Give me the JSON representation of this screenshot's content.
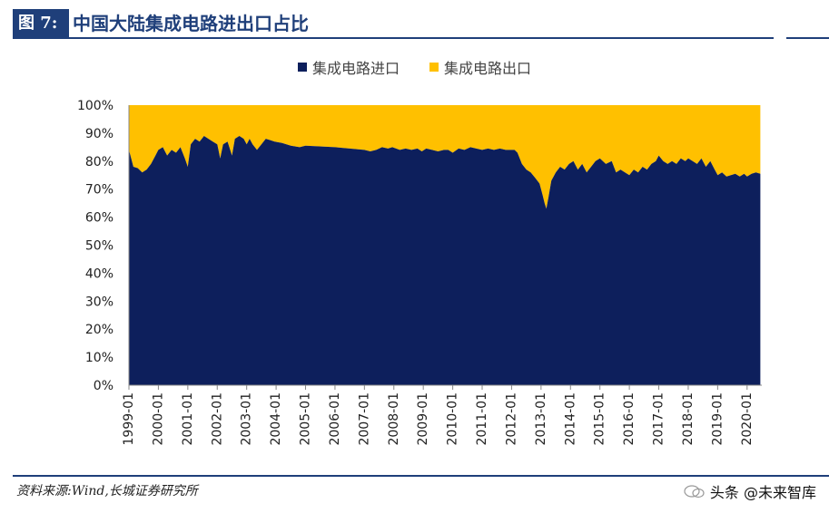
{
  "header": {
    "fig_label": "图 7:",
    "title": "中国大陆集成电路进出口占比"
  },
  "footer": {
    "source": "资料来源:Wind,长城证券研究所",
    "watermark": "头条 @未来智库"
  },
  "colors": {
    "import": "#0d1f5c",
    "export": "#ffc000",
    "brand": "#1f3f7a"
  },
  "chart_data": {
    "type": "area",
    "stacked": true,
    "title": "",
    "xlabel": "",
    "ylabel": "",
    "ylim": [
      0,
      100
    ],
    "y_ticks": [
      "0%",
      "10%",
      "20%",
      "30%",
      "40%",
      "50%",
      "60%",
      "70%",
      "80%",
      "90%",
      "100%"
    ],
    "x_ticks": [
      "1999-01",
      "2000-01",
      "2001-01",
      "2002-01",
      "2003-01",
      "2004-01",
      "2005-01",
      "2006-01",
      "2007-01",
      "2008-01",
      "2009-01",
      "2010-01",
      "2011-01",
      "2012-01",
      "2013-01",
      "2014-01",
      "2015-01",
      "2016-01",
      "2017-01",
      "2018-01",
      "2019-01",
      "2020-01"
    ],
    "legend": "top-center",
    "grid": false,
    "series": [
      {
        "name": "集成电路进口",
        "points": [
          [
            1999.0,
            84
          ],
          [
            1999.15,
            78
          ],
          [
            1999.3,
            77.5
          ],
          [
            1999.45,
            76
          ],
          [
            1999.6,
            77
          ],
          [
            1999.75,
            79
          ],
          [
            1999.9,
            82
          ],
          [
            2000.0,
            84
          ],
          [
            2000.15,
            85
          ],
          [
            2000.3,
            82
          ],
          [
            2000.45,
            84
          ],
          [
            2000.6,
            83
          ],
          [
            2000.75,
            85
          ],
          [
            2000.9,
            81
          ],
          [
            2001.0,
            78
          ],
          [
            2001.1,
            86
          ],
          [
            2001.25,
            88
          ],
          [
            2001.4,
            87
          ],
          [
            2001.55,
            89
          ],
          [
            2001.7,
            88
          ],
          [
            2001.85,
            87
          ],
          [
            2002.0,
            86
          ],
          [
            2002.1,
            81
          ],
          [
            2002.2,
            86
          ],
          [
            2002.35,
            87
          ],
          [
            2002.5,
            82
          ],
          [
            2002.6,
            88
          ],
          [
            2002.75,
            89
          ],
          [
            2002.9,
            88
          ],
          [
            2003.0,
            86
          ],
          [
            2003.1,
            88
          ],
          [
            2003.2,
            86
          ],
          [
            2003.35,
            84
          ],
          [
            2003.5,
            86
          ],
          [
            2003.65,
            88
          ],
          [
            2003.8,
            87.5
          ],
          [
            2003.95,
            87
          ],
          [
            2004.2,
            86.5
          ],
          [
            2004.5,
            85.5
          ],
          [
            2004.8,
            85
          ],
          [
            2005.0,
            85.5
          ],
          [
            2006.0,
            85
          ],
          [
            2007.0,
            84
          ],
          [
            2007.2,
            83.5
          ],
          [
            2007.4,
            84
          ],
          [
            2007.6,
            85
          ],
          [
            2007.8,
            84.5
          ],
          [
            2007.95,
            85
          ],
          [
            2008.2,
            84
          ],
          [
            2008.4,
            84.5
          ],
          [
            2008.6,
            84
          ],
          [
            2008.8,
            84.5
          ],
          [
            2008.95,
            83.5
          ],
          [
            2009.1,
            84.5
          ],
          [
            2009.3,
            84
          ],
          [
            2009.5,
            83.5
          ],
          [
            2009.7,
            84
          ],
          [
            2009.85,
            84
          ],
          [
            2010.0,
            83
          ],
          [
            2010.2,
            84.5
          ],
          [
            2010.4,
            84
          ],
          [
            2010.6,
            85
          ],
          [
            2010.8,
            84.5
          ],
          [
            2011.0,
            84
          ],
          [
            2011.2,
            84.5
          ],
          [
            2011.4,
            84
          ],
          [
            2011.6,
            84.5
          ],
          [
            2011.8,
            84
          ],
          [
            2012.0,
            84
          ],
          [
            2012.1,
            84
          ],
          [
            2012.2,
            83
          ],
          [
            2012.35,
            79
          ],
          [
            2012.5,
            77
          ],
          [
            2012.65,
            76
          ],
          [
            2012.8,
            74
          ],
          [
            2012.95,
            72
          ],
          [
            2013.05,
            68
          ],
          [
            2013.12,
            65
          ],
          [
            2013.18,
            63
          ],
          [
            2013.25,
            67
          ],
          [
            2013.35,
            73
          ],
          [
            2013.5,
            76
          ],
          [
            2013.65,
            78
          ],
          [
            2013.8,
            77
          ],
          [
            2013.95,
            79
          ],
          [
            2014.1,
            80
          ],
          [
            2014.25,
            77
          ],
          [
            2014.4,
            79
          ],
          [
            2014.55,
            76
          ],
          [
            2014.7,
            78
          ],
          [
            2014.85,
            80
          ],
          [
            2015.0,
            81
          ],
          [
            2015.2,
            79
          ],
          [
            2015.4,
            80
          ],
          [
            2015.55,
            76
          ],
          [
            2015.7,
            77
          ],
          [
            2015.85,
            76
          ],
          [
            2016.0,
            75
          ],
          [
            2016.15,
            77
          ],
          [
            2016.3,
            76
          ],
          [
            2016.45,
            78
          ],
          [
            2016.6,
            77
          ],
          [
            2016.75,
            79
          ],
          [
            2016.9,
            80
          ],
          [
            2017.0,
            82
          ],
          [
            2017.15,
            80
          ],
          [
            2017.3,
            79
          ],
          [
            2017.45,
            80
          ],
          [
            2017.6,
            79
          ],
          [
            2017.75,
            81
          ],
          [
            2017.9,
            80
          ],
          [
            2018.0,
            81
          ],
          [
            2018.15,
            80
          ],
          [
            2018.3,
            79
          ],
          [
            2018.45,
            81
          ],
          [
            2018.6,
            78
          ],
          [
            2018.75,
            80
          ],
          [
            2018.9,
            77
          ],
          [
            2019.0,
            75
          ],
          [
            2019.15,
            76
          ],
          [
            2019.3,
            74.5
          ],
          [
            2019.45,
            75
          ],
          [
            2019.6,
            75.5
          ],
          [
            2019.75,
            74.5
          ],
          [
            2019.9,
            75.5
          ],
          [
            2020.0,
            74.5
          ],
          [
            2020.15,
            75.5
          ],
          [
            2020.3,
            76
          ],
          [
            2020.45,
            75.5
          ]
        ]
      },
      {
        "name": "集成电路出口",
        "fills_to": 100
      }
    ]
  }
}
